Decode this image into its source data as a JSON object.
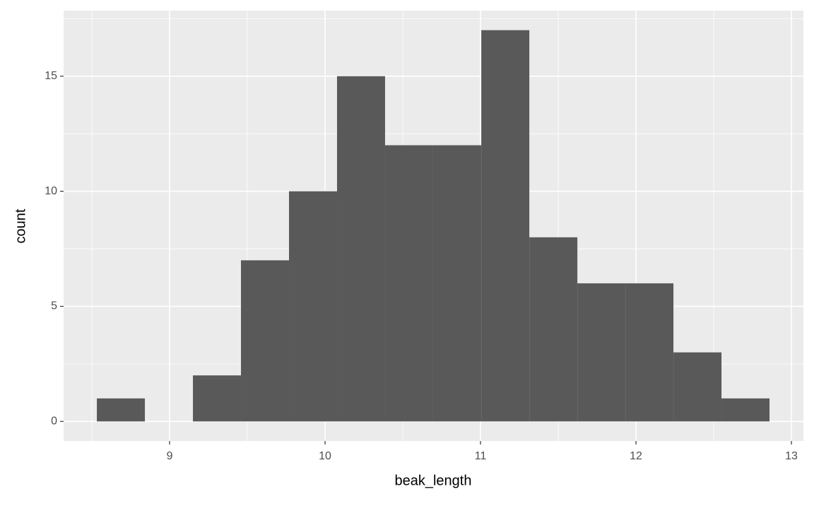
{
  "chart_data": {
    "type": "histogram",
    "x_label": "beak_length",
    "y_label": "count",
    "bins": [
      8.532,
      8.841,
      9.15,
      9.459,
      9.768,
      10.077,
      10.386,
      10.695,
      11.005,
      11.314,
      11.623,
      11.932,
      12.241,
      12.55,
      12.859
    ],
    "values": [
      1,
      0,
      2,
      7,
      10,
      15,
      12,
      12,
      17,
      8,
      6,
      6,
      3,
      1
    ],
    "color": "#595959",
    "xlim": [
      8.318,
      13.077
    ],
    "ylim": [
      -0.85,
      17.85
    ],
    "xticks": [
      9,
      10,
      11,
      12,
      13
    ],
    "yticks": [
      0,
      5,
      10,
      15
    ],
    "x_minor_breaks": [
      8.5,
      9.5,
      10.5,
      11.5,
      12.5
    ],
    "y_minor_breaks": [
      2.5,
      7.5,
      12.5,
      17.5
    ],
    "grid": true
  }
}
